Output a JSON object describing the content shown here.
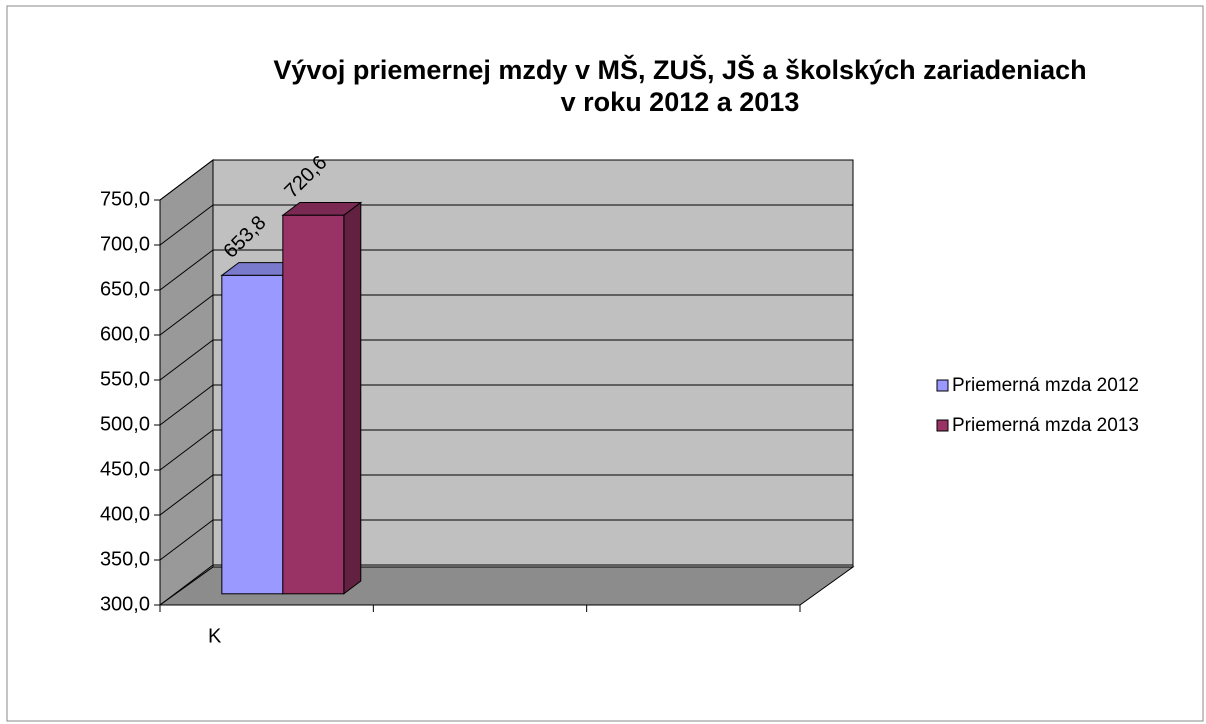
{
  "chart_data": {
    "type": "bar3d",
    "title": [
      "Vývoj priemernej mzdy v MŠ, ZUŠ, JŠ a školských zariadeniach",
      "v roku 2012 a 2013"
    ],
    "categories": [
      "K",
      null,
      null
    ],
    "series": [
      {
        "name": "Priemerná mzda 2012",
        "color": "#9999ff",
        "values": [
          653.8,
          null,
          null
        ],
        "value_labels": [
          "653,8",
          null,
          null
        ]
      },
      {
        "name": "Priemerná mzda 2013",
        "color": "#993366",
        "values": [
          720.6,
          null,
          null
        ],
        "value_labels": [
          "720,6",
          null,
          null
        ]
      }
    ],
    "ylim": [
      300,
      750
    ],
    "yticks": [
      {
        "value": 300,
        "label": "300,0"
      },
      {
        "value": 350,
        "label": "350,0"
      },
      {
        "value": 400,
        "label": "400,0"
      },
      {
        "value": 450,
        "label": "450,0"
      },
      {
        "value": 500,
        "label": "500,0"
      },
      {
        "value": 550,
        "label": "550,0"
      },
      {
        "value": 600,
        "label": "600,0"
      },
      {
        "value": 650,
        "label": "650,0"
      },
      {
        "value": 700,
        "label": "700,0"
      },
      {
        "value": 750,
        "label": "750,0"
      }
    ],
    "grid": true,
    "legend": "right"
  }
}
